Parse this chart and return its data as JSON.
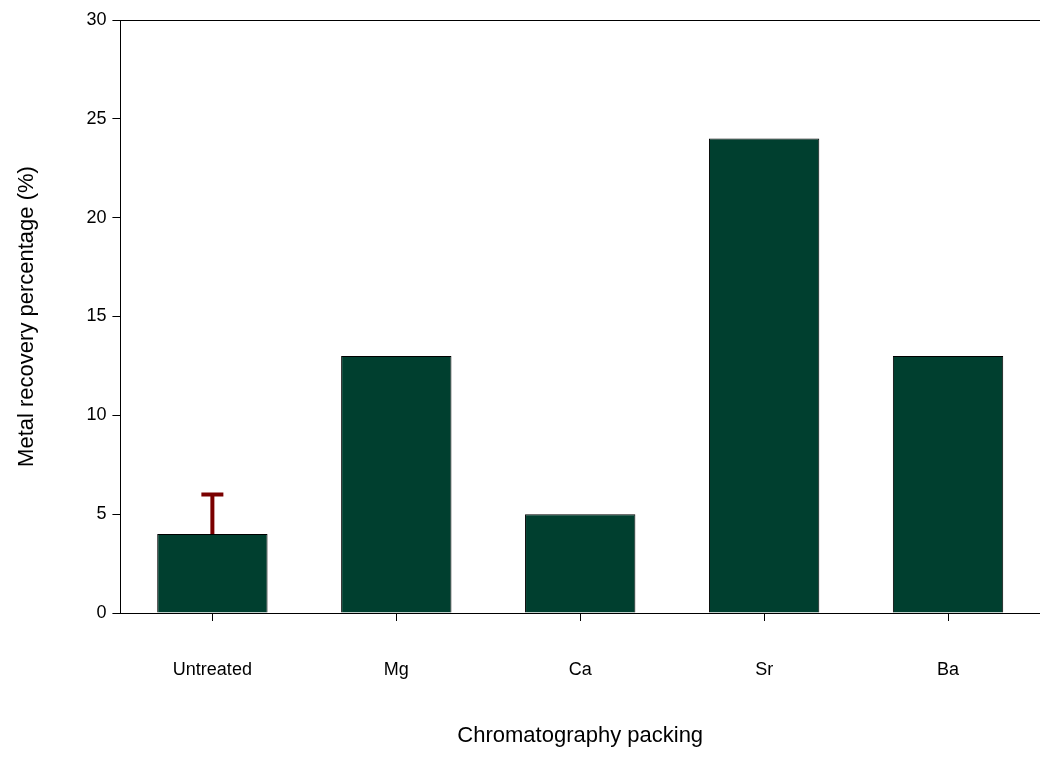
{
  "chart_data": {
    "type": "bar",
    "xlabel": "Chromatography packing",
    "ylabel": "Metal recovery percentage (%)",
    "categories": [
      "Untreated",
      "Mg",
      "Ca",
      "Sr",
      "Ba"
    ],
    "values": [
      4,
      13,
      5,
      24,
      13
    ],
    "color": "#003f2f",
    "errors": [
      [
        4,
        6
      ],
      null,
      null,
      null,
      null
    ],
    "ylim": [
      0,
      30
    ],
    "yticks": [
      0,
      5,
      10,
      15,
      20,
      25,
      30
    ],
    "grid": false,
    "legend": false
  }
}
